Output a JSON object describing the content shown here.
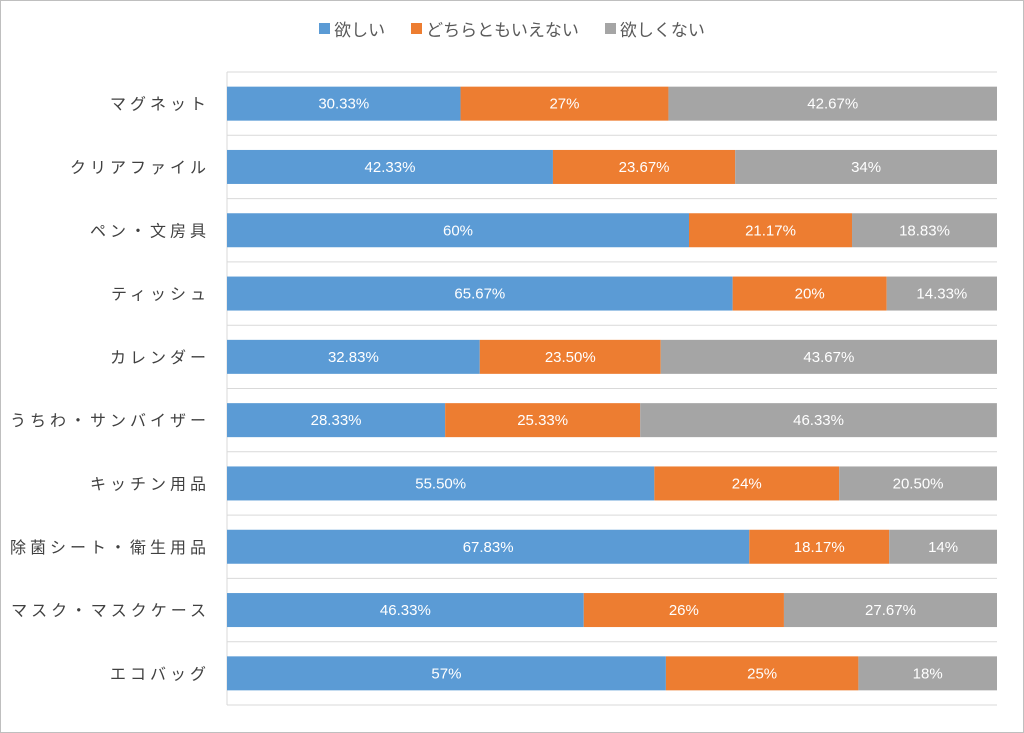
{
  "chart_data": {
    "type": "bar",
    "orientation": "horizontal",
    "stacked": "percent",
    "title": "",
    "xlabel": "",
    "ylabel": "",
    "xlim": [
      0,
      100
    ],
    "grid": true,
    "legend_position": "top",
    "categories": [
      "マグネット",
      "クリアファイル",
      "ペン・文房具",
      "ティッシュ",
      "カレンダー",
      "うちわ・サンバイザー",
      "キッチン用品",
      "除菌シート・衛生用品",
      "マスク・マスクケース",
      "エコバッグ"
    ],
    "series": [
      {
        "name": "欲しい",
        "color": "#5b9bd5",
        "values": [
          30.33,
          42.33,
          60,
          65.67,
          32.83,
          28.33,
          55.5,
          67.83,
          46.33,
          57
        ],
        "labels": [
          "30.33%",
          "42.33%",
          "60%",
          "65.67%",
          "32.83%",
          "28.33%",
          "55.50%",
          "67.83%",
          "46.33%",
          "57%"
        ]
      },
      {
        "name": "どちらともいえない",
        "color": "#ed7d31",
        "values": [
          27,
          23.67,
          21.17,
          20,
          23.5,
          25.33,
          24,
          18.17,
          26,
          25
        ],
        "labels": [
          "27%",
          "23.67%",
          "21.17%",
          "20%",
          "23.50%",
          "25.33%",
          "24%",
          "18.17%",
          "26%",
          "25%"
        ]
      },
      {
        "name": "欲しくない",
        "color": "#a5a5a5",
        "values": [
          42.67,
          34,
          18.83,
          14.33,
          43.67,
          46.33,
          20.5,
          14,
          27.67,
          18
        ],
        "labels": [
          "42.67%",
          "34%",
          "18.83%",
          "14.33%",
          "43.67%",
          "46.33%",
          "20.50%",
          "14%",
          "27.67%",
          "18%"
        ]
      }
    ]
  }
}
